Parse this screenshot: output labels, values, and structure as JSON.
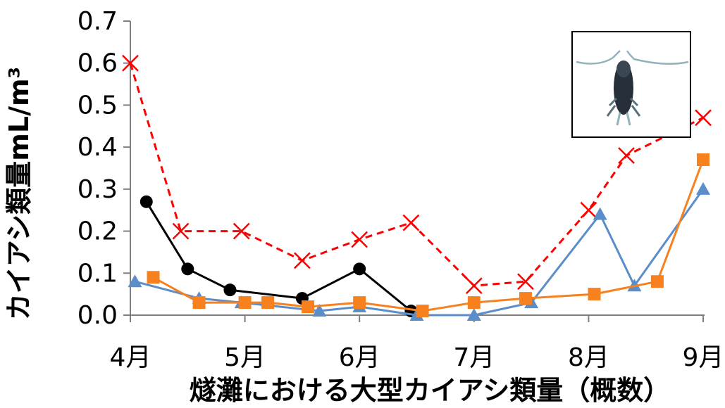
{
  "chart_data": {
    "type": "line",
    "title": "",
    "xlabel": "燧灘における大型カイアシ類量（概数）",
    "ylabel": "カイアシ類量mL/m³",
    "x_ticks": [
      "4月",
      "5月",
      "6月",
      "7月",
      "8月",
      "9月"
    ],
    "y_ticks": [
      "0.0",
      "0.1",
      "0.2",
      "0.3",
      "0.4",
      "0.5",
      "0.6",
      "0.7"
    ],
    "xlim": [
      0,
      5
    ],
    "ylim": [
      0,
      0.7
    ],
    "grid": false,
    "legend": "none",
    "inset": "copepod photograph",
    "series": [
      {
        "color": "#ff0000",
        "line_style": "dashed",
        "marker": "x",
        "x": [
          0.0,
          0.44,
          0.97,
          1.5,
          2.0,
          2.45,
          3.0,
          3.45,
          4.0,
          4.33,
          5.0
        ],
        "y": [
          0.6,
          0.2,
          0.2,
          0.13,
          0.18,
          0.22,
          0.07,
          0.08,
          0.25,
          0.38,
          0.47
        ]
      },
      {
        "color": "#000000",
        "line_style": "solid",
        "marker": "circle",
        "x": [
          0.14,
          0.5,
          0.87,
          1.5,
          2.0,
          2.45
        ],
        "y": [
          0.27,
          0.11,
          0.06,
          0.04,
          0.11,
          0.01
        ]
      },
      {
        "color": "#5b8ec9",
        "line_style": "solid",
        "marker": "triangle",
        "x": [
          0.04,
          0.6,
          0.97,
          1.65,
          2.0,
          2.5,
          3.0,
          3.5,
          4.1,
          4.4,
          5.0
        ],
        "y": [
          0.08,
          0.04,
          0.03,
          0.01,
          0.02,
          0.0,
          0.0,
          0.03,
          0.24,
          0.07,
          0.3
        ]
      },
      {
        "color": "#f7811e",
        "line_style": "solid",
        "marker": "square",
        "x": [
          0.2,
          0.6,
          1.0,
          1.2,
          1.55,
          2.0,
          2.55,
          3.0,
          3.45,
          4.05,
          4.6,
          5.0
        ],
        "y": [
          0.09,
          0.03,
          0.03,
          0.03,
          0.02,
          0.03,
          0.01,
          0.03,
          0.04,
          0.05,
          0.08,
          0.37
        ]
      }
    ]
  }
}
